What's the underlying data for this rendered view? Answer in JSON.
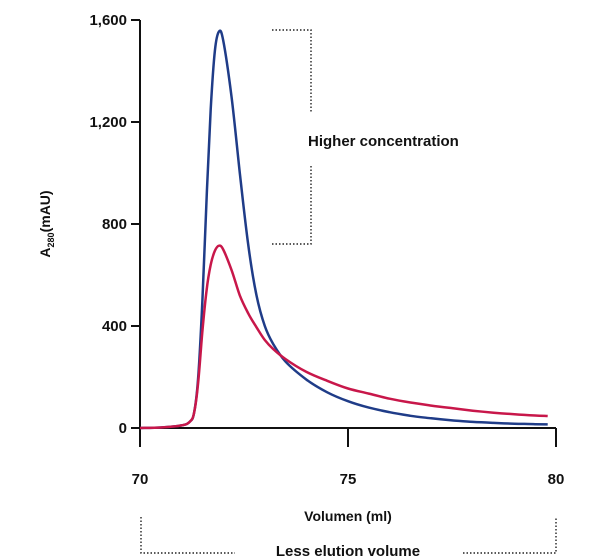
{
  "chart_data": {
    "type": "line",
    "xlabel": "Volumen (ml)",
    "ylabel_main": "A",
    "ylabel_sub": "280",
    "ylabel_unit": "(mAU)",
    "xlim": [
      70,
      80
    ],
    "ylim": [
      0,
      1600
    ],
    "x_ticks": [
      {
        "value": 70,
        "label": "70"
      },
      {
        "value": 75,
        "label": "75"
      },
      {
        "value": 80,
        "label": "80"
      }
    ],
    "y_ticks": [
      {
        "value": 0,
        "label": "0"
      },
      {
        "value": 400,
        "label": "400"
      },
      {
        "value": 800,
        "label": "800"
      },
      {
        "value": 1200,
        "label": "1,200"
      },
      {
        "value": 1600,
        "label": "1,600"
      }
    ],
    "grid": false,
    "series": [
      {
        "color": "#1f3c88",
        "points": [
          [
            70.0,
            0
          ],
          [
            70.5,
            2
          ],
          [
            71.0,
            10
          ],
          [
            71.2,
            25
          ],
          [
            71.3,
            60
          ],
          [
            71.4,
            200
          ],
          [
            71.5,
            500
          ],
          [
            71.6,
            900
          ],
          [
            71.7,
            1250
          ],
          [
            71.8,
            1480
          ],
          [
            71.9,
            1555
          ],
          [
            72.0,
            1520
          ],
          [
            72.2,
            1300
          ],
          [
            72.4,
            1000
          ],
          [
            72.6,
            720
          ],
          [
            72.8,
            520
          ],
          [
            73.0,
            400
          ],
          [
            73.2,
            330
          ],
          [
            73.5,
            260
          ],
          [
            74.0,
            190
          ],
          [
            74.5,
            140
          ],
          [
            75.0,
            105
          ],
          [
            75.5,
            80
          ],
          [
            76.0,
            62
          ],
          [
            76.5,
            48
          ],
          [
            77.0,
            38
          ],
          [
            77.5,
            30
          ],
          [
            78.0,
            24
          ],
          [
            78.5,
            20
          ],
          [
            79.0,
            17
          ],
          [
            79.5,
            15
          ],
          [
            79.8,
            14
          ]
        ]
      },
      {
        "color": "#c8174a",
        "points": [
          [
            70.0,
            0
          ],
          [
            70.5,
            2
          ],
          [
            71.0,
            10
          ],
          [
            71.2,
            25
          ],
          [
            71.3,
            60
          ],
          [
            71.4,
            180
          ],
          [
            71.5,
            380
          ],
          [
            71.6,
            540
          ],
          [
            71.7,
            640
          ],
          [
            71.8,
            695
          ],
          [
            71.9,
            715
          ],
          [
            72.0,
            700
          ],
          [
            72.2,
            620
          ],
          [
            72.4,
            520
          ],
          [
            72.6,
            450
          ],
          [
            72.8,
            395
          ],
          [
            73.0,
            345
          ],
          [
            73.2,
            310
          ],
          [
            73.5,
            270
          ],
          [
            74.0,
            220
          ],
          [
            74.5,
            185
          ],
          [
            75.0,
            155
          ],
          [
            75.5,
            135
          ],
          [
            76.0,
            115
          ],
          [
            76.5,
            100
          ],
          [
            77.0,
            88
          ],
          [
            77.5,
            78
          ],
          [
            78.0,
            68
          ],
          [
            78.5,
            60
          ],
          [
            79.0,
            54
          ],
          [
            79.5,
            49
          ],
          [
            79.8,
            47
          ]
        ]
      }
    ],
    "annotations": [
      {
        "text": "Higher concentration"
      },
      {
        "text": "Less elution volume"
      }
    ]
  }
}
